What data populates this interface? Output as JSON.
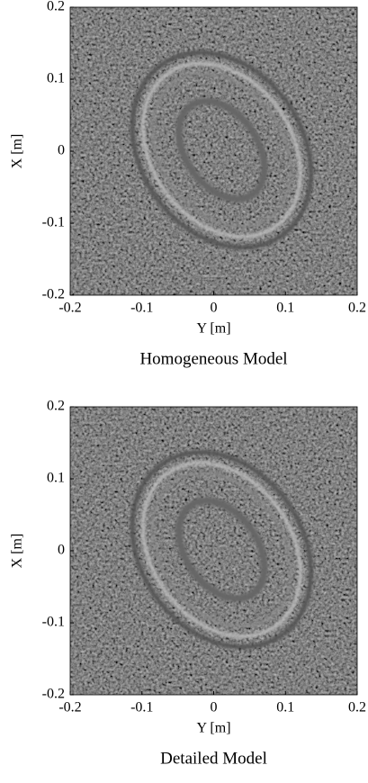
{
  "chart_data": [
    {
      "type": "image",
      "caption": "Homogeneous Model",
      "x_label": "Y [m]",
      "y_label": "X [m]",
      "xlim": [
        -0.2,
        0.2
      ],
      "ylim": [
        -0.2,
        0.2
      ],
      "xticks": [
        -0.2,
        -0.1,
        0,
        0.1,
        0.2
      ],
      "yticks": [
        -0.2,
        -0.1,
        0,
        0.1,
        0.2
      ],
      "colormap": "gray"
    },
    {
      "type": "image",
      "caption": "Detailed Model",
      "x_label": "Y [m]",
      "y_label": "X [m]",
      "xlim": [
        -0.2,
        0.2
      ],
      "ylim": [
        -0.2,
        0.2
      ],
      "xticks": [
        -0.2,
        -0.1,
        0,
        0.1,
        0.2
      ],
      "yticks": [
        -0.2,
        -0.1,
        0,
        0.1,
        0.2
      ],
      "colormap": "gray"
    }
  ]
}
